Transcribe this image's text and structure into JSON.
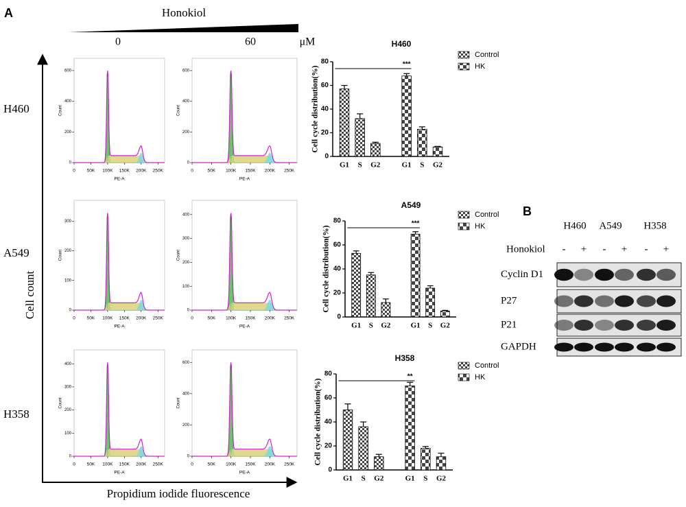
{
  "panel_a_label": "A",
  "panel_b_label": "B",
  "treatment": "Honokiol",
  "doses": [
    "0",
    "60"
  ],
  "dose_unit": "μM",
  "cell_lines": [
    "H460",
    "A549",
    "H358"
  ],
  "y_axis_label": "Cell count",
  "x_axis_label": "Propidium iodide fluorescence",
  "histogram_xlabel": "PE-A",
  "histogram_ylabel": "Count",
  "histogram_xlim": [
    0,
    270000
  ],
  "histogram_xticks": [
    {
      "value": 0,
      "label": "0"
    },
    {
      "value": 50000,
      "label": "50K"
    },
    {
      "value": 100000,
      "label": "100K"
    },
    {
      "value": 150000,
      "label": "150K"
    },
    {
      "value": 200000,
      "label": "200K"
    },
    {
      "value": 250000,
      "label": "250K"
    }
  ],
  "histograms": [
    {
      "ylim": [
        0,
        680
      ],
      "yticks": [
        0,
        200,
        400,
        600
      ]
    },
    {
      "ylim": [
        0,
        680
      ],
      "yticks": [
        0,
        200,
        400,
        600
      ]
    },
    {
      "ylim": [
        0,
        370
      ],
      "yticks": [
        0,
        100,
        200,
        300
      ]
    },
    {
      "ylim": [
        0,
        460
      ],
      "yticks": [
        0,
        100,
        200,
        300,
        400
      ]
    },
    {
      "ylim": [
        0,
        460
      ],
      "yticks": [
        0,
        100,
        200,
        300,
        400
      ]
    },
    {
      "ylim": [
        0,
        680
      ],
      "yticks": [
        0,
        200,
        400,
        600
      ]
    }
  ],
  "chart_data": [
    {
      "type": "bar",
      "title": "H460",
      "y_label": "Cell cycle distribution(%)",
      "categories": [
        "G1",
        "S",
        "G2",
        "G1",
        "S",
        "G2"
      ],
      "ylim": [
        0,
        80
      ],
      "yticks": [
        0,
        20,
        40,
        60,
        80
      ],
      "annotation": "***",
      "series": [
        {
          "name": "Control",
          "color": "#444444",
          "values": [
            57,
            32,
            11,
            null,
            null,
            null
          ],
          "errors": [
            3,
            4,
            1,
            null,
            null,
            null
          ]
        },
        {
          "name": "HK",
          "color": "#444444",
          "values": [
            null,
            null,
            null,
            68,
            23,
            8
          ],
          "errors": [
            null,
            null,
            null,
            2,
            2,
            0.5
          ]
        }
      ]
    },
    {
      "type": "bar",
      "title": "A549",
      "y_label": "Cell cycle distribution(%)",
      "categories": [
        "G1",
        "S",
        "G2",
        "G1",
        "S",
        "G2"
      ],
      "ylim": [
        0,
        80
      ],
      "yticks": [
        0,
        20,
        40,
        60,
        80
      ],
      "annotation": "***",
      "series": [
        {
          "name": "Control",
          "color": "#444444",
          "values": [
            53,
            35,
            12,
            null,
            null,
            null
          ],
          "errors": [
            2,
            2,
            3,
            null,
            null,
            null
          ]
        },
        {
          "name": "HK",
          "color": "#444444",
          "values": [
            null,
            null,
            null,
            69,
            24,
            5
          ],
          "errors": [
            null,
            null,
            null,
            2,
            2,
            0.5
          ]
        }
      ]
    },
    {
      "type": "bar",
      "title": "H358",
      "y_label": "Cell cycle distribution(%)",
      "categories": [
        "G1",
        "S",
        "G2",
        "G1",
        "S",
        "G2"
      ],
      "ylim": [
        0,
        80
      ],
      "yticks": [
        0,
        20,
        40,
        60,
        80
      ],
      "annotation": "**",
      "series": [
        {
          "name": "Control",
          "color": "#444444",
          "values": [
            50,
            36,
            11,
            null,
            null,
            null
          ],
          "errors": [
            5,
            4,
            2,
            null,
            null,
            null
          ]
        },
        {
          "name": "HK",
          "color": "#444444",
          "values": [
            null,
            null,
            null,
            70,
            18,
            11
          ],
          "errors": [
            null,
            null,
            null,
            3,
            1.5,
            3
          ]
        }
      ]
    }
  ],
  "western": {
    "cell_lines": [
      "H460",
      "A549",
      "H358"
    ],
    "treatment": "Honokiol",
    "signs": [
      "-",
      "+",
      "-",
      "+",
      "-",
      "+"
    ],
    "proteins": [
      "Cyclin D1",
      "P27",
      "P21",
      "GAPDH"
    ]
  }
}
